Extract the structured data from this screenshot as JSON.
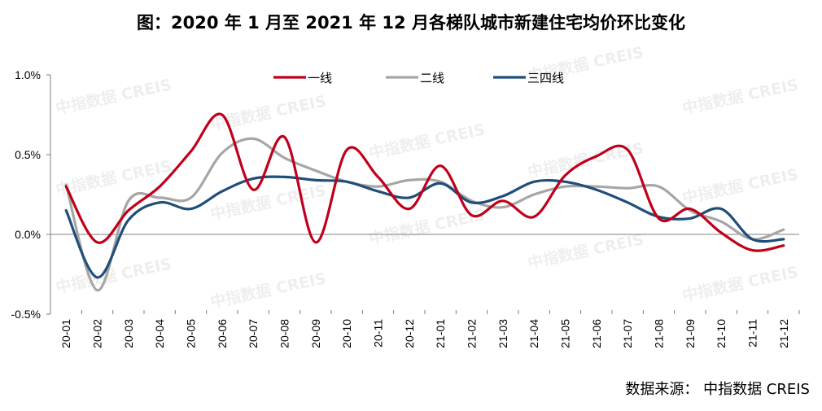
{
  "title": "图：2020 年 1 月至 2021 年 12 月各梯队城市新建住宅均价环比变化",
  "source": "数据来源： 中指数据 CREIS",
  "watermark": "中指数据 CREIS",
  "chart_data": {
    "type": "line",
    "categories": [
      "20-01",
      "20-02",
      "20-03",
      "20-04",
      "20-05",
      "20-06",
      "20-07",
      "20-08",
      "20-09",
      "20-10",
      "20-11",
      "20-12",
      "21-01",
      "21-02",
      "21-03",
      "21-04",
      "21-05",
      "21-06",
      "21-07",
      "21-08",
      "21-09",
      "21-10",
      "21-11",
      "21-12"
    ],
    "yticks": [
      "1.0%",
      "0.5%",
      "0.0%",
      "-0.5%"
    ],
    "ylim": [
      -0.5,
      1.0
    ],
    "legend_position": "top-center",
    "series": [
      {
        "name": "一线",
        "color": "#c0001a",
        "values": [
          0.3,
          -0.05,
          0.15,
          0.3,
          0.52,
          0.75,
          0.28,
          0.61,
          -0.05,
          0.53,
          0.36,
          0.16,
          0.43,
          0.12,
          0.21,
          0.11,
          0.37,
          0.49,
          0.53,
          0.1,
          0.16,
          0.01,
          -0.1,
          -0.07
        ]
      },
      {
        "name": "二线",
        "color": "#a6a6a6",
        "values": [
          0.31,
          -0.35,
          0.21,
          0.23,
          0.23,
          0.51,
          0.6,
          0.48,
          0.4,
          0.33,
          0.3,
          0.34,
          0.33,
          0.21,
          0.17,
          0.25,
          0.3,
          0.3,
          0.29,
          0.3,
          0.15,
          0.08,
          -0.03,
          0.03
        ]
      },
      {
        "name": "三四线",
        "color": "#1f4e79",
        "values": [
          0.15,
          -0.27,
          0.09,
          0.2,
          0.16,
          0.27,
          0.35,
          0.36,
          0.34,
          0.33,
          0.27,
          0.23,
          0.32,
          0.2,
          0.24,
          0.33,
          0.33,
          0.28,
          0.2,
          0.11,
          0.1,
          0.16,
          -0.03,
          -0.03
        ]
      }
    ]
  }
}
